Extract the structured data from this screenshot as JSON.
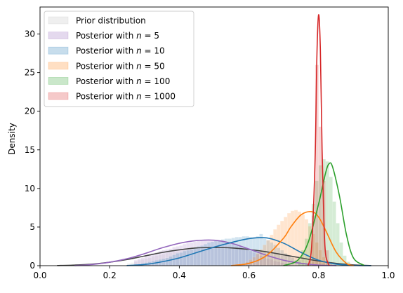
{
  "chart_data": {
    "type": "area",
    "title": "",
    "xlabel": "",
    "ylabel": "Density",
    "xlim": [
      0.0,
      1.0
    ],
    "ylim": [
      0,
      33.5
    ],
    "xticks": [
      "0.0",
      "0.2",
      "0.4",
      "0.6",
      "0.8",
      "1.0"
    ],
    "yticks": [
      "0",
      "5",
      "10",
      "15",
      "20",
      "25",
      "30"
    ],
    "grid": false,
    "legend_position": "top-left",
    "series": [
      {
        "name": "Prior distribution",
        "color": "#444444",
        "fill": "#bfbfbf",
        "histogram": {
          "bin_start": 0.25,
          "bin_width": 0.01,
          "values": [
            0.3,
            0.4,
            0.5,
            0.7,
            0.8,
            0.9,
            1.0,
            1.2,
            1.3,
            1.4,
            1.5,
            1.6,
            1.7,
            1.8,
            1.8,
            1.9,
            2.0,
            2.0,
            2.1,
            2.1,
            2.2,
            2.2,
            2.2,
            2.3,
            2.3,
            2.3,
            2.3,
            2.3,
            2.3,
            2.3,
            2.3,
            2.2,
            2.2,
            2.2,
            2.1,
            2.1,
            2.0,
            2.0,
            1.9,
            1.8,
            1.8,
            1.7,
            1.6,
            1.5,
            1.4,
            1.3,
            1.2,
            1.1,
            1.0,
            0.9,
            0.8,
            0.7,
            0.6,
            0.5,
            0.5,
            0.4,
            0.3,
            0.3,
            0.2,
            0.2
          ]
        },
        "density": {
          "x": [
            0.05,
            0.1,
            0.15,
            0.2,
            0.25,
            0.3,
            0.35,
            0.4,
            0.45,
            0.5,
            0.55,
            0.6,
            0.65,
            0.7,
            0.75,
            0.8,
            0.85,
            0.9,
            0.95
          ],
          "y": [
            0.02,
            0.08,
            0.2,
            0.45,
            0.8,
            1.25,
            1.7,
            2.05,
            2.3,
            2.35,
            2.3,
            2.1,
            1.8,
            1.4,
            1.0,
            0.6,
            0.3,
            0.1,
            0.02
          ]
        }
      },
      {
        "name": "Posterior with n = 5",
        "color": "#9467bd",
        "fill": "#9467bd",
        "histogram": {
          "bin_start": 0.27,
          "bin_width": 0.01,
          "values": [
            0.7,
            0.9,
            1.0,
            1.2,
            1.4,
            1.6,
            1.7,
            1.9,
            2.0,
            2.1,
            2.2,
            2.4,
            2.5,
            2.6,
            2.8,
            2.9,
            3.0,
            3.1,
            3.2,
            3.3,
            3.4,
            3.4,
            3.3,
            3.3,
            3.2,
            3.1,
            3.0,
            2.9,
            2.8,
            2.6,
            2.5,
            2.3,
            2.1,
            1.9,
            1.7,
            1.5,
            1.3,
            1.1,
            0.9,
            0.8,
            0.6,
            0.5,
            0.4,
            0.3,
            0.2
          ]
        },
        "density": {
          "x": [
            0.1,
            0.15,
            0.2,
            0.25,
            0.3,
            0.35,
            0.4,
            0.45,
            0.5,
            0.55,
            0.6,
            0.65,
            0.7,
            0.75,
            0.8,
            0.85
          ],
          "y": [
            0.02,
            0.15,
            0.45,
            0.9,
            1.55,
            2.3,
            2.9,
            3.25,
            3.3,
            2.9,
            2.15,
            1.35,
            0.7,
            0.3,
            0.08,
            0.02
          ]
        }
      },
      {
        "name": "Posterior with n = 10",
        "color": "#1f77b4",
        "fill": "#1f77b4",
        "histogram": {
          "bin_start": 0.26,
          "bin_width": 0.01,
          "values": [
            0.1,
            0.15,
            0.2,
            0.3,
            0.4,
            0.5,
            0.6,
            0.7,
            0.8,
            0.9,
            1.0,
            1.2,
            1.4,
            1.6,
            1.7,
            1.9,
            2.0,
            2.1,
            2.3,
            2.5,
            2.6,
            2.8,
            3.0,
            3.1,
            3.2,
            3.3,
            3.4,
            3.5,
            3.5,
            3.6,
            3.7,
            3.7,
            3.8,
            3.8,
            3.7,
            3.7,
            3.8,
            4.1,
            3.5,
            3.3,
            3.0,
            2.7,
            2.3,
            2.0,
            1.6,
            1.3,
            1.0,
            0.7,
            0.5,
            0.3,
            0.2,
            0.15,
            0.1
          ]
        },
        "density": {
          "x": [
            0.25,
            0.3,
            0.35,
            0.4,
            0.45,
            0.5,
            0.55,
            0.6,
            0.65,
            0.7,
            0.75,
            0.8,
            0.85,
            0.9,
            0.95
          ],
          "y": [
            0.02,
            0.15,
            0.5,
            1.0,
            1.7,
            2.4,
            3.0,
            3.5,
            3.6,
            2.9,
            1.7,
            0.7,
            0.2,
            0.04,
            0.0
          ]
        }
      },
      {
        "name": "Posterior with n = 50",
        "color": "#ff7f0e",
        "fill": "#ff7f0e",
        "histogram": {
          "bin_start": 0.58,
          "bin_width": 0.01,
          "values": [
            0.3,
            0.5,
            0.8,
            1.1,
            1.6,
            2.1,
            2.7,
            3.3,
            4.0,
            4.7,
            5.3,
            5.8,
            6.3,
            6.8,
            7.1,
            7.2,
            7.0,
            6.6,
            6.0,
            5.1,
            4.1,
            3.0,
            2.0,
            1.1,
            0.5
          ]
        },
        "density": {
          "x": [
            0.55,
            0.6,
            0.65,
            0.7,
            0.72,
            0.75,
            0.78,
            0.8,
            0.82,
            0.85,
            0.88,
            0.9
          ],
          "y": [
            0.02,
            0.3,
            1.3,
            3.6,
            5.0,
            6.6,
            7.0,
            6.3,
            4.6,
            1.8,
            0.3,
            0.02
          ]
        }
      },
      {
        "name": "Posterior with n = 100",
        "color": "#2ca02c",
        "fill": "#2ca02c",
        "histogram": {
          "bin_start": 0.74,
          "bin_width": 0.01,
          "values": [
            0.8,
            2.0,
            3.5,
            5.5,
            8.0,
            11.0,
            13.0,
            13.8,
            13.5,
            11.5,
            8.3,
            5.5,
            3.0,
            1.3,
            0.5
          ]
        },
        "density": {
          "x": [
            0.7,
            0.74,
            0.77,
            0.8,
            0.82,
            0.83,
            0.84,
            0.86,
            0.88,
            0.9,
            0.93
          ],
          "y": [
            0.02,
            0.7,
            3.0,
            8.0,
            12.0,
            13.2,
            12.8,
            9.0,
            4.0,
            1.0,
            0.05
          ]
        }
      },
      {
        "name": "Posterior with n = 1000",
        "color": "#d62728",
        "fill": "#d62728",
        "histogram": {
          "bin_start": 0.77,
          "bin_width": 0.01,
          "values": [
            0.8,
            6.5,
            26.0,
            18.0,
            11.0,
            2.0,
            0.3
          ]
        },
        "density": {
          "x": [
            0.77,
            0.78,
            0.79,
            0.795,
            0.8,
            0.805,
            0.81,
            0.815,
            0.82,
            0.83
          ],
          "y": [
            0.05,
            2.5,
            14.0,
            27.0,
            32.5,
            28.0,
            15.0,
            6.0,
            1.5,
            0.05
          ]
        }
      }
    ]
  }
}
